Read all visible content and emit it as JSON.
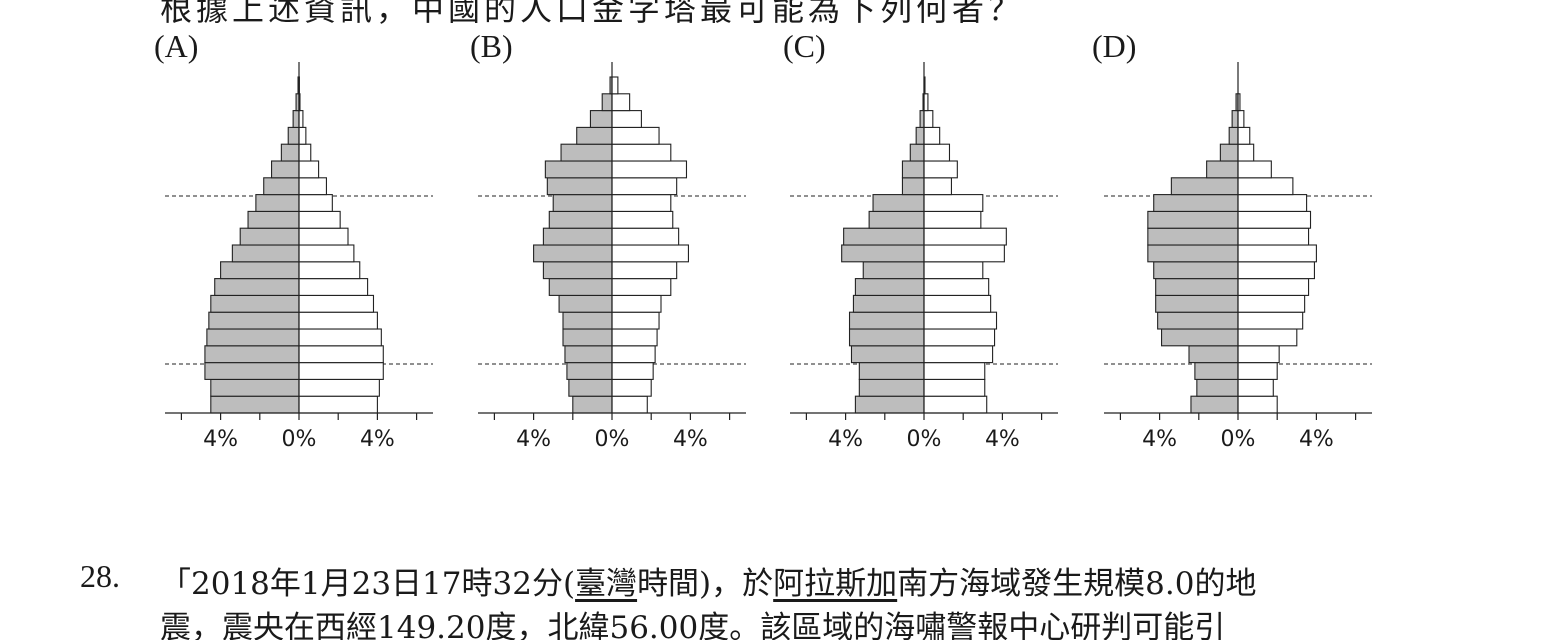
{
  "intro_text": "根據上述資訊，中國的人口金字塔最可能為下列何者？",
  "options": [
    {
      "label": "(A)",
      "tick_labels": [
        "4%",
        "0%",
        "4%"
      ],
      "chart_data": {
        "type": "bar",
        "orientation": "horizontal-population-pyramid",
        "unit": "%",
        "xlim": [
          -6,
          6
        ],
        "categories_bottom_to_top": [
          1,
          2,
          3,
          4,
          5,
          6,
          7,
          8,
          9,
          10,
          11,
          12,
          13,
          14,
          15,
          16,
          17,
          18,
          19,
          20,
          21
        ],
        "series": [
          {
            "values": [
              4.5,
              4.5,
              4.8,
              4.8,
              4.7,
              4.6,
              4.5,
              4.3,
              4.0,
              3.4,
              3.0,
              2.6,
              2.2,
              1.8,
              1.4,
              0.9,
              0.55,
              0.3,
              0.15,
              0.05,
              0.0
            ]
          },
          {
            "values": [
              4.0,
              4.1,
              4.3,
              4.3,
              4.2,
              4.0,
              3.8,
              3.5,
              3.1,
              2.8,
              2.5,
              2.1,
              1.7,
              1.4,
              1.0,
              0.6,
              0.35,
              0.2,
              0.05,
              0.02,
              0.0
            ]
          }
        ],
        "reference_lines_between_groups": [
          3,
          13
        ]
      }
    },
    {
      "label": "(B)",
      "tick_labels": [
        "4%",
        "0%",
        "4%"
      ],
      "chart_data": {
        "type": "bar",
        "orientation": "horizontal-population-pyramid",
        "unit": "%",
        "xlim": [
          -6,
          6
        ],
        "categories_bottom_to_top": [
          1,
          2,
          3,
          4,
          5,
          6,
          7,
          8,
          9,
          10,
          11,
          12,
          13,
          14,
          15,
          16,
          17,
          18,
          19,
          20,
          21
        ],
        "series": [
          {
            "values": [
              2.0,
              2.2,
              2.3,
              2.4,
              2.5,
              2.5,
              2.7,
              3.2,
              3.5,
              4.0,
              3.5,
              3.2,
              3.0,
              3.3,
              3.4,
              2.6,
              1.8,
              1.1,
              0.5,
              0.1,
              0.0
            ]
          },
          {
            "values": [
              1.8,
              2.0,
              2.1,
              2.2,
              2.3,
              2.4,
              2.5,
              3.0,
              3.3,
              3.9,
              3.4,
              3.1,
              3.0,
              3.3,
              3.8,
              3.0,
              2.4,
              1.5,
              0.9,
              0.3,
              0.0
            ]
          }
        ],
        "reference_lines_between_groups": [
          3,
          13
        ]
      }
    },
    {
      "label": "(C)",
      "tick_labels": [
        "4%",
        "0%",
        "4%"
      ],
      "chart_data": {
        "type": "bar",
        "orientation": "horizontal-population-pyramid",
        "unit": "%",
        "xlim": [
          -6,
          6
        ],
        "categories_bottom_to_top": [
          1,
          2,
          3,
          4,
          5,
          6,
          7,
          8,
          9,
          10,
          11,
          12,
          13,
          14,
          15,
          16,
          17,
          18,
          19,
          20,
          21
        ],
        "series": [
          {
            "values": [
              3.5,
              3.3,
              3.3,
              3.7,
              3.8,
              3.8,
              3.6,
              3.5,
              3.1,
              4.2,
              4.1,
              2.8,
              2.6,
              1.1,
              1.1,
              0.7,
              0.4,
              0.2,
              0.05,
              0.0,
              0.0
            ]
          },
          {
            "values": [
              3.2,
              3.1,
              3.1,
              3.5,
              3.6,
              3.7,
              3.4,
              3.3,
              3.0,
              4.1,
              4.2,
              2.9,
              3.0,
              1.4,
              1.7,
              1.3,
              0.8,
              0.45,
              0.2,
              0.05,
              0.0
            ]
          }
        ],
        "reference_lines_between_groups": [
          3,
          13
        ]
      }
    },
    {
      "label": "(D)",
      "tick_labels": [
        "4%",
        "0%",
        "4%"
      ],
      "chart_data": {
        "type": "bar",
        "orientation": "horizontal-population-pyramid",
        "unit": "%",
        "xlim": [
          -6,
          6
        ],
        "categories_bottom_to_top": [
          1,
          2,
          3,
          4,
          5,
          6,
          7,
          8,
          9,
          10,
          11,
          12,
          13,
          14,
          15,
          16,
          17,
          18,
          19,
          20,
          21
        ],
        "series": [
          {
            "values": [
              2.4,
              2.1,
              2.2,
              2.5,
              3.9,
              4.1,
              4.2,
              4.2,
              4.3,
              4.6,
              4.6,
              4.6,
              4.3,
              3.4,
              1.6,
              0.9,
              0.45,
              0.3,
              0.1,
              0.0,
              0.0
            ]
          },
          {
            "values": [
              2.0,
              1.8,
              2.0,
              2.1,
              3.0,
              3.3,
              3.4,
              3.6,
              3.9,
              4.0,
              3.6,
              3.7,
              3.5,
              2.8,
              1.7,
              0.8,
              0.6,
              0.3,
              0.1,
              0.0,
              0.0
            ]
          }
        ],
        "reference_lines_between_groups": [
          3,
          13
        ]
      }
    }
  ],
  "question": {
    "number": "28.",
    "line1": [
      {
        "text": "「2018年1月23日17時32分(",
        "underline": false
      },
      {
        "text": "臺灣",
        "underline": true
      },
      {
        "text": "時間)，於",
        "underline": false
      },
      {
        "text": "阿拉斯加",
        "underline": true
      },
      {
        "text": "南方海域發生規模8.0的地",
        "underline": false
      }
    ],
    "line2": "震，震央在西經149.20度，北緯56.00度。該區域的海嘯警報中心研判可能引"
  },
  "colors": {
    "male_fill": "#bdbdbd",
    "female_fill": "#ffffff",
    "stroke": "#222222"
  }
}
